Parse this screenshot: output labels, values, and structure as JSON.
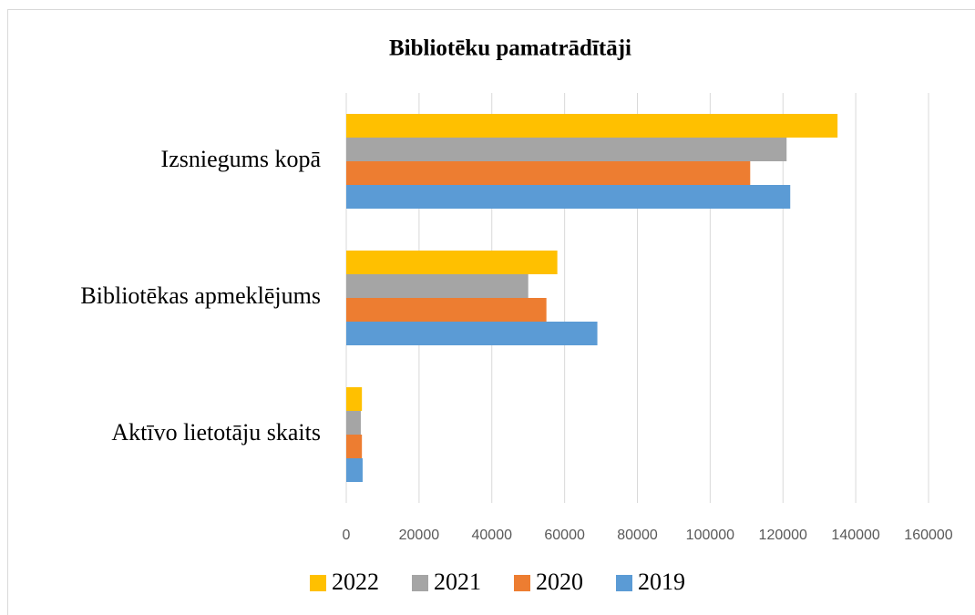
{
  "chart_data": {
    "type": "barh",
    "title": "Bibliotēku pamatrādītāji",
    "categories": [
      "Izsniegums kopā",
      "Bibliotēkas apmeklējums",
      "Aktīvo lietotāju skaits"
    ],
    "series": [
      {
        "name": "2022",
        "color": "#ffc000",
        "values": [
          135000,
          58000,
          4300
        ]
      },
      {
        "name": "2021",
        "color": "#a5a5a5",
        "values": [
          121000,
          50000,
          4000
        ]
      },
      {
        "name": "2020",
        "color": "#ed7d31",
        "values": [
          111000,
          55000,
          4300
        ]
      },
      {
        "name": "2019",
        "color": "#5b9bd5",
        "values": [
          122000,
          69000,
          4500
        ]
      }
    ],
    "xlim": [
      0,
      160000
    ],
    "xticks": [
      0,
      20000,
      40000,
      60000,
      80000,
      100000,
      120000,
      140000,
      160000
    ],
    "grid": true,
    "legend": "bottom"
  }
}
